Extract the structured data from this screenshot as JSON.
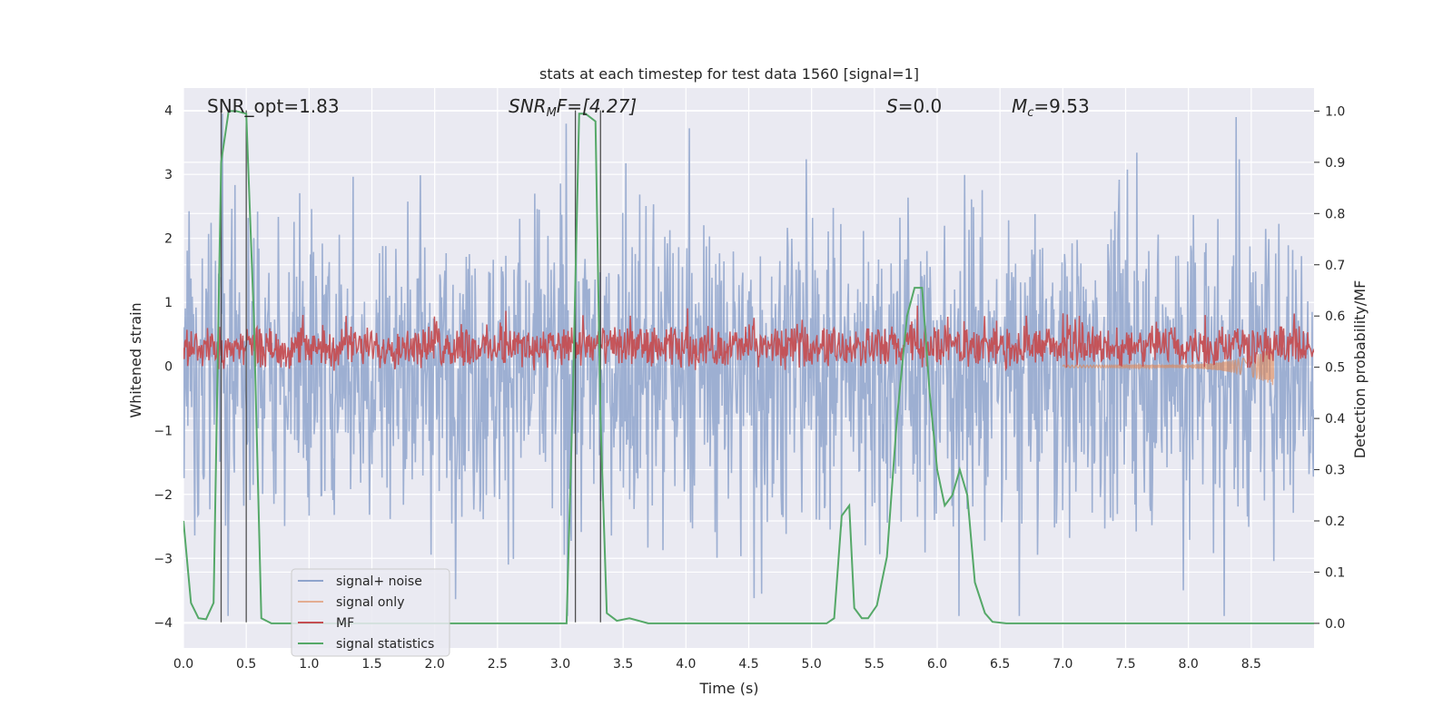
{
  "chart_data": {
    "type": "line",
    "title": "stats at each timestep for test data 1560 [signal=1]",
    "xlabel": "Time (s)",
    "ylabel": "Whitened strain",
    "y2label": "Detection probability/MF",
    "xlim": [
      0.0,
      9.0
    ],
    "ylim": [
      -4.4,
      4.35
    ],
    "y2lim": [
      -0.048,
      1.045
    ],
    "xticks": [
      0.0,
      0.5,
      1.0,
      1.5,
      2.0,
      2.5,
      3.0,
      3.5,
      4.0,
      4.5,
      5.0,
      5.5,
      6.0,
      6.5,
      7.0,
      7.5,
      8.0,
      8.5
    ],
    "xtick_labels": [
      "0.0",
      "0.5",
      "1.0",
      "1.5",
      "2.0",
      "2.5",
      "3.0",
      "3.5",
      "4.0",
      "4.5",
      "5.0",
      "5.5",
      "6.0",
      "6.5",
      "7.0",
      "7.5",
      "8.0",
      "8.5"
    ],
    "yticks": [
      4,
      3,
      2,
      1,
      0,
      -1,
      -2,
      -3,
      -4
    ],
    "ytick_labels": [
      "4",
      "3",
      "2",
      "1",
      "0",
      "−1",
      "−2",
      "−3",
      "−4"
    ],
    "y2ticks": [
      1.0,
      0.9,
      0.8,
      0.7,
      0.6,
      0.5,
      0.4,
      0.3,
      0.2,
      0.1,
      0.0
    ],
    "y2tick_labels": [
      "1.0",
      "0.9",
      "0.8",
      "0.7",
      "0.6",
      "0.5",
      "0.4",
      "0.3",
      "0.2",
      "0.1",
      "0.0"
    ],
    "grid": true,
    "legend_position": "lower-left",
    "legend": [
      "signal+ noise",
      "signal only",
      "MF",
      "signal statistics"
    ],
    "annotations": {
      "snr_opt": "SNR_opt=1.83",
      "snr_mf_prefix": "SNR",
      "snr_mf_sub": "M",
      "snr_mf_suffix": "F=[4.27]",
      "s_symbol": "S",
      "s_value": "=0.0",
      "mc_symbol": "M",
      "mc_sub": "c",
      "mc_value": "=9.53"
    },
    "colors": {
      "signal_noise": "#8fa4cc",
      "signal_only": "#dd8452",
      "mf": "#c44e52",
      "signal_statistics": "#55a868",
      "vlines": "#333333",
      "plot_bg": "#eaeaf2",
      "grid": "#ffffff"
    },
    "vertical_lines_x": [
      0.3,
      0.5,
      3.12,
      3.32
    ],
    "series": [
      {
        "name": "signal statistics",
        "axis": "y2",
        "x": [
          0.0,
          0.06,
          0.12,
          0.18,
          0.24,
          0.3,
          0.36,
          0.42,
          0.5,
          0.56,
          0.62,
          0.7,
          0.8,
          1.0,
          2.0,
          3.05,
          3.1,
          3.15,
          3.2,
          3.28,
          3.32,
          3.37,
          3.45,
          3.55,
          3.7,
          3.85,
          4.5,
          5.12,
          5.18,
          5.24,
          5.3,
          5.34,
          5.4,
          5.45,
          5.52,
          5.6,
          5.68,
          5.76,
          5.82,
          5.88,
          5.94,
          6.0,
          6.06,
          6.12,
          6.18,
          6.24,
          6.3,
          6.38,
          6.44,
          6.55,
          7.0,
          8.0,
          9.0
        ],
        "y": [
          0.2,
          0.04,
          0.01,
          0.008,
          0.04,
          0.9,
          1.0,
          1.0,
          0.995,
          0.6,
          0.01,
          0.0,
          0.0,
          0.0,
          0.0,
          0.0,
          0.45,
          0.995,
          0.995,
          0.98,
          0.4,
          0.02,
          0.005,
          0.01,
          0.0,
          0.0,
          0.0,
          0.0,
          0.01,
          0.21,
          0.23,
          0.03,
          0.01,
          0.01,
          0.035,
          0.13,
          0.4,
          0.6,
          0.655,
          0.655,
          0.45,
          0.3,
          0.23,
          0.25,
          0.3,
          0.25,
          0.08,
          0.02,
          0.003,
          0.0,
          0.0,
          0.0,
          0.0
        ]
      }
    ]
  }
}
